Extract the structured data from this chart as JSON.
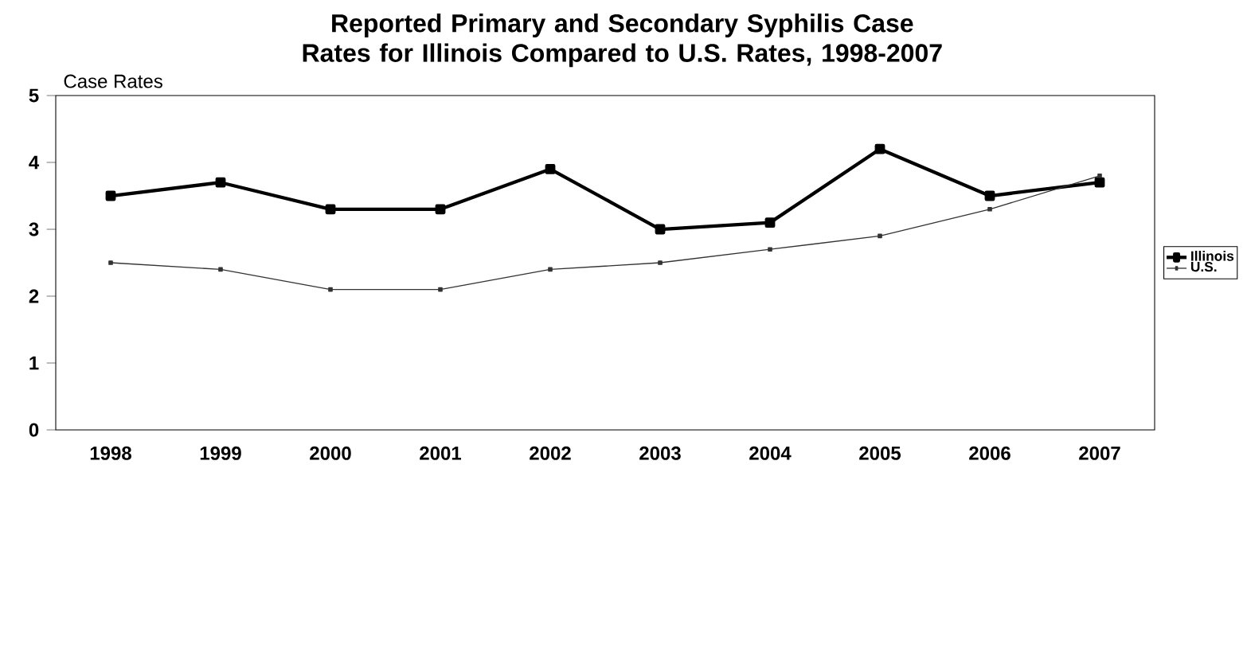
{
  "chart_data": {
    "type": "line",
    "title": "Reported Primary and Secondary Syphilis Case Rates for Illinois Compared to U.S. Rates, 1998-2007",
    "ylabel": "Case Rates",
    "categories": [
      "1998",
      "1999",
      "2000",
      "2001",
      "2002",
      "2003",
      "2004",
      "2005",
      "2006",
      "2007"
    ],
    "series": [
      {
        "name": "Illinois",
        "color": "#000000",
        "values": [
          3.5,
          3.7,
          3.3,
          3.3,
          3.9,
          3.0,
          3.1,
          4.2,
          3.5,
          3.7
        ]
      },
      {
        "name": "U.S.",
        "color": "#333333",
        "values": [
          2.5,
          2.4,
          2.1,
          2.1,
          2.4,
          2.5,
          2.7,
          2.9,
          3.3,
          3.8
        ]
      }
    ],
    "ylim": [
      0,
      5
    ],
    "yticks": [
      0,
      1,
      2,
      3,
      4,
      5
    ],
    "grid": false,
    "legend": "right",
    "marker": "square",
    "line_style": "solid"
  }
}
